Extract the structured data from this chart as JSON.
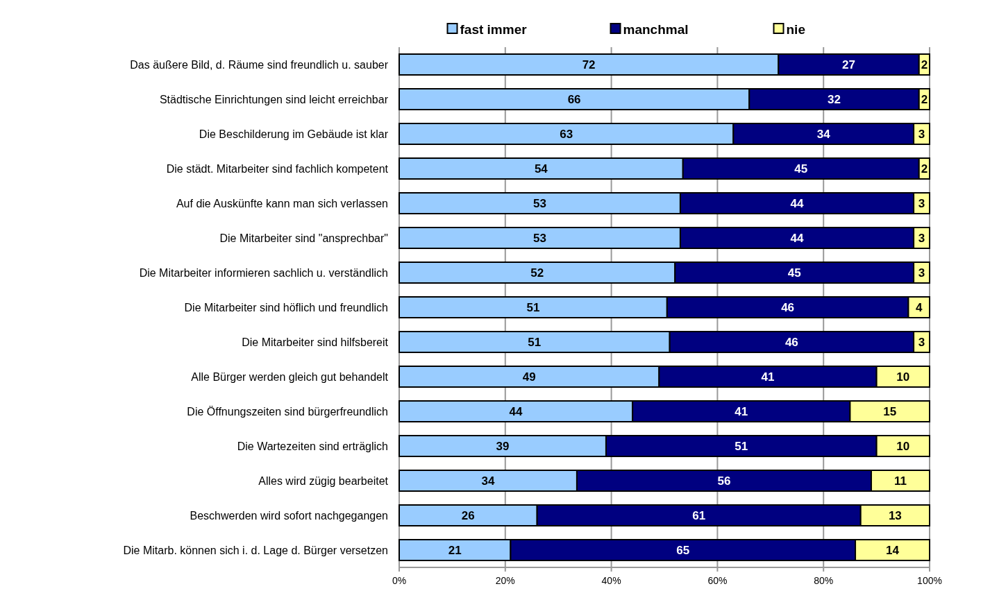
{
  "chart_data": {
    "type": "bar",
    "orientation": "horizontal",
    "stacked": true,
    "categories": [
      "Das äußere Bild, d. Räume sind freundlich u. sauber",
      "Städtische Einrichtungen sind leicht erreichbar",
      "Die Beschilderung im Gebäude ist klar",
      "Die städt. Mitarbeiter sind fachlich kompetent",
      "Auf die Auskünfte kann man sich verlassen",
      "Die Mitarbeiter sind \"ansprechbar\"",
      "Die Mitarbeiter informieren sachlich u. verständlich",
      "Die Mitarbeiter sind höflich und freundlich",
      "Die Mitarbeiter sind hilfsbereit",
      "Alle Bürger werden gleich gut behandelt",
      "Die Öffnungszeiten sind bürgerfreundlich",
      "Die Wartezeiten sind erträglich",
      "Alles wird zügig bearbeitet",
      "Beschwerden wird sofort nachgegangen",
      "Die Mitarb. können sich i. d. Lage d. Bürger versetzen"
    ],
    "series": [
      {
        "name": "fast immer",
        "color": "#99ccff",
        "values": [
          71.5,
          66,
          63,
          53.5,
          53,
          53,
          52,
          50.5,
          51,
          49,
          44,
          39,
          33.5,
          26,
          21
        ],
        "value_labels": [
          "72",
          "66",
          "63",
          "54",
          "53",
          "53",
          "52",
          "51",
          "51",
          "49",
          "44",
          "39",
          "34",
          "26",
          "21"
        ]
      },
      {
        "name": "manchmal",
        "color": "#000080",
        "values": [
          26.5,
          32,
          34,
          44.5,
          44,
          44,
          45,
          45.5,
          46,
          41,
          41,
          51,
          55.5,
          61,
          65
        ],
        "value_labels": [
          "27",
          "32",
          "34",
          "45",
          "44",
          "44",
          "45",
          "46",
          "46",
          "41",
          "41",
          "51",
          "56",
          "61",
          "65"
        ]
      },
      {
        "name": "nie",
        "color": "#ffff99",
        "values": [
          2,
          2,
          3,
          2,
          3,
          3,
          3,
          4,
          3,
          10,
          15,
          10,
          11,
          13,
          14
        ],
        "value_labels": [
          "2",
          "2",
          "3",
          "2",
          "3",
          "3",
          "3",
          "4",
          "3",
          "10",
          "15",
          "10",
          "11",
          "13",
          "14"
        ]
      }
    ],
    "xlim": [
      0,
      100
    ],
    "xticks": [
      {
        "value": 0,
        "label": "0%"
      },
      {
        "value": 20,
        "label": "20%"
      },
      {
        "value": 40,
        "label": "40%"
      },
      {
        "value": 60,
        "label": "60%"
      },
      {
        "value": 80,
        "label": "80%"
      },
      {
        "value": 100,
        "label": "100%"
      }
    ],
    "grid": "x",
    "legend": "top"
  }
}
